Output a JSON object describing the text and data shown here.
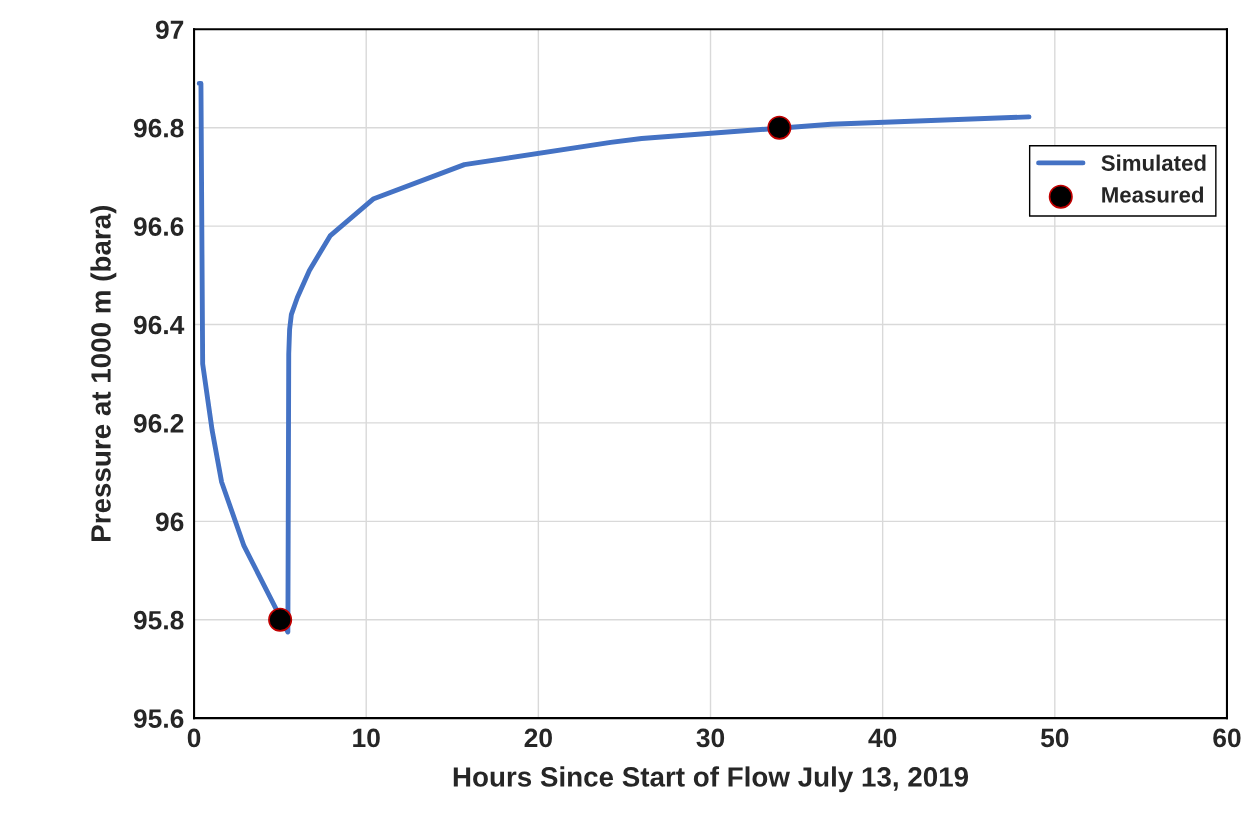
{
  "chart_data": {
    "type": "line",
    "xlabel": "Hours Since Start of Flow July 13, 2019",
    "ylabel": "Pressure at 1000 m (bara)",
    "xlim": [
      0,
      60
    ],
    "xticks": [
      0,
      10,
      20,
      30,
      40,
      50,
      60
    ],
    "ylim": [
      95.6,
      97
    ],
    "yticks": [
      95.6,
      95.8,
      96,
      96.2,
      96.4,
      96.6,
      96.8,
      97
    ],
    "grid": true,
    "legend": "right",
    "series": [
      {
        "name": "Simulated",
        "color": "#4472c4",
        "marker": "none",
        "line_style": "solid",
        "x": [
          0.3,
          0.4,
          0.5,
          1.05,
          1.6,
          2.9,
          5.45,
          5.5,
          5.55,
          5.65,
          6.0,
          6.7,
          7.9,
          10.4,
          15.7,
          24.2,
          26.0,
          37.0,
          48.5
        ],
        "values": [
          96.89,
          96.89,
          96.32,
          96.185,
          96.08,
          95.95,
          95.775,
          96.34,
          96.39,
          96.42,
          96.455,
          96.51,
          96.58,
          96.655,
          96.725,
          96.77,
          96.778,
          96.807,
          96.822
        ]
      },
      {
        "name": "Measured",
        "type": "scatter",
        "color": "#000000",
        "marker": "circle",
        "x": [
          5.0,
          34.0
        ],
        "values": [
          95.8,
          96.8
        ]
      }
    ]
  }
}
